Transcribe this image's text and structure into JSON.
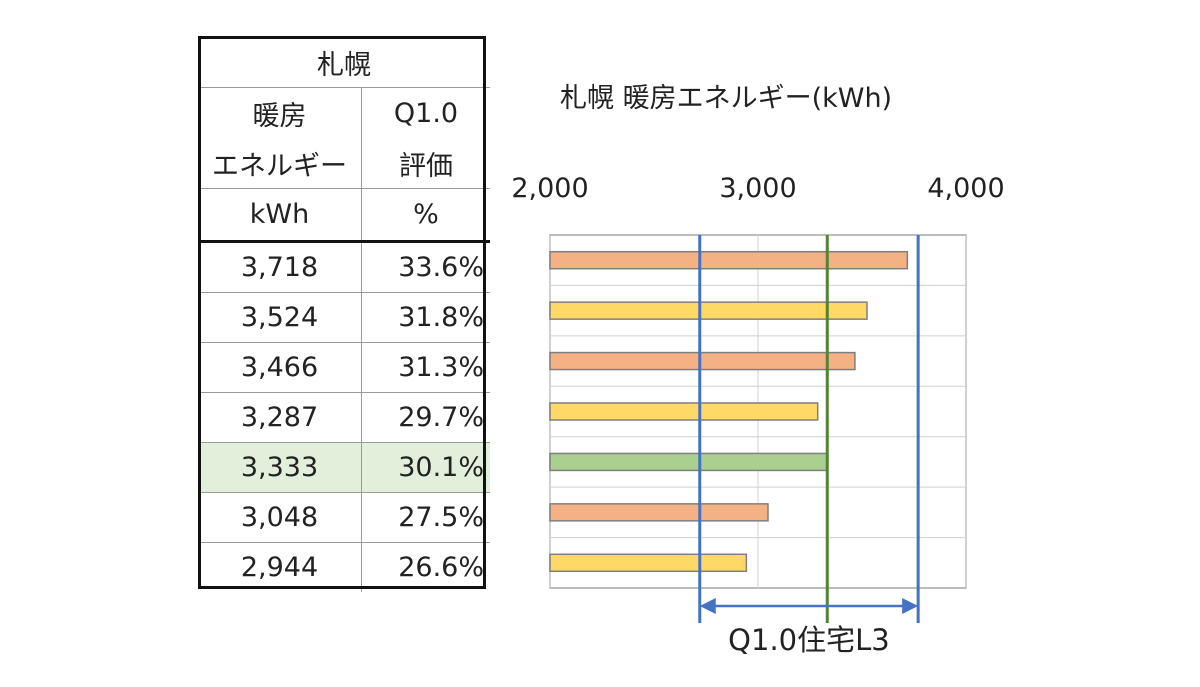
{
  "table": {
    "city": "札幌",
    "col1_header": [
      "暖房",
      "エネルギー",
      "kWh"
    ],
    "col2_header": [
      "Q1.0",
      "評価",
      "%"
    ],
    "rows": [
      {
        "kwh": "3,718",
        "pct": "33.6%",
        "highlight": false
      },
      {
        "kwh": "3,524",
        "pct": "31.8%",
        "highlight": false
      },
      {
        "kwh": "3,466",
        "pct": "31.3%",
        "highlight": false
      },
      {
        "kwh": "3,287",
        "pct": "29.7%",
        "highlight": false
      },
      {
        "kwh": "3,333",
        "pct": "30.1%",
        "highlight": true
      },
      {
        "kwh": "3,048",
        "pct": "27.5%",
        "highlight": false
      },
      {
        "kwh": "2,944",
        "pct": "26.6%",
        "highlight": false
      }
    ]
  },
  "chart_data": {
    "type": "bar",
    "orientation": "horizontal",
    "title": "札幌 暖房エネルギー(kWh)",
    "xlim": [
      2000,
      4000
    ],
    "xticks": [
      2000,
      3000,
      4000
    ],
    "xtick_labels": [
      "2,000",
      "3,000",
      "4,000"
    ],
    "grid": true,
    "values": [
      3718,
      3524,
      3466,
      3287,
      3333,
      3048,
      2944
    ],
    "bar_colors": [
      "#f4b183",
      "#ffd966",
      "#f4b183",
      "#ffd966",
      "#a9d08e",
      "#f4b183",
      "#ffd966"
    ],
    "reference_lines": [
      {
        "value": 2720,
        "color": "#4472c4"
      },
      {
        "value": 3333,
        "color": "#548235"
      },
      {
        "value": 3770,
        "color": "#4472c4"
      }
    ],
    "annotation": {
      "label": "Q1.0住宅L3",
      "from": 2720,
      "to": 3770,
      "color": "#4472c4"
    }
  }
}
